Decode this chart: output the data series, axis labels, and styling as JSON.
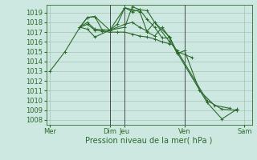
{
  "xlabel": "Pression niveau de la mer( hPa )",
  "bg_color": "#cde8e0",
  "grid_color": "#a0b8b0",
  "line_color": "#2d6a2d",
  "vline_color": "#4a4a4a",
  "ylim": [
    1007.5,
    1019.8
  ],
  "yticks": [
    1008,
    1009,
    1010,
    1011,
    1012,
    1013,
    1014,
    1015,
    1016,
    1017,
    1018,
    1019
  ],
  "xtick_labels": [
    "Mer",
    "Dim",
    "Jeu",
    "Ven",
    "Sam"
  ],
  "xtick_positions": [
    0,
    8,
    10,
    18,
    26
  ],
  "xlim": [
    -0.5,
    27
  ],
  "series": [
    [
      0,
      1013.0
    ],
    [
      2,
      1015.0
    ],
    [
      4,
      1017.5
    ],
    [
      5,
      1018.5
    ],
    [
      6,
      1018.6
    ],
    [
      7,
      1017.2
    ],
    [
      8,
      1017.2
    ],
    [
      9,
      1017.8
    ],
    [
      10,
      1019.5
    ],
    [
      11,
      1019.3
    ],
    [
      12,
      1019.1
    ],
    [
      13,
      1017.0
    ],
    [
      14,
      1016.6
    ],
    [
      15,
      1017.5
    ],
    [
      16,
      1016.4
    ],
    [
      17,
      1014.8
    ],
    [
      18,
      1015.1
    ],
    [
      20,
      1011.0
    ],
    [
      22,
      1009.5
    ],
    [
      24,
      1009.2
    ]
  ],
  "s2": [
    [
      4,
      1017.5
    ],
    [
      5,
      1018.5
    ],
    [
      6,
      1018.6
    ],
    [
      8,
      1017.2
    ],
    [
      10,
      1019.5
    ],
    [
      11,
      1019.1
    ],
    [
      12,
      1019.3
    ],
    [
      13,
      1018.3
    ],
    [
      14,
      1017.5
    ],
    [
      15,
      1016.4
    ],
    [
      16,
      1016.4
    ],
    [
      17,
      1015.0
    ],
    [
      19,
      1014.4
    ]
  ],
  "s3": [
    [
      4,
      1017.5
    ],
    [
      5,
      1017.8
    ],
    [
      6,
      1017.2
    ],
    [
      7,
      1017.1
    ],
    [
      8,
      1017.0
    ],
    [
      9,
      1017.0
    ],
    [
      10,
      1017.0
    ],
    [
      11,
      1016.8
    ],
    [
      12,
      1016.6
    ],
    [
      13,
      1016.5
    ],
    [
      14,
      1016.3
    ],
    [
      15,
      1016.0
    ],
    [
      16,
      1015.8
    ]
  ],
  "s4": [
    [
      4,
      1017.5
    ],
    [
      5,
      1017.3
    ],
    [
      6,
      1016.5
    ],
    [
      8,
      1017.2
    ],
    [
      10,
      1017.8
    ],
    [
      11,
      1018.0
    ],
    [
      12,
      1017.5
    ],
    [
      13,
      1017.1
    ],
    [
      14,
      1018.0
    ],
    [
      16,
      1016.0
    ],
    [
      17,
      1015.1
    ],
    [
      21,
      1010.0
    ],
    [
      23,
      1009.1
    ],
    [
      25,
      1009.0
    ]
  ],
  "s5": [
    [
      4,
      1017.5
    ],
    [
      5,
      1018.0
    ],
    [
      6,
      1017.3
    ],
    [
      8,
      1017.2
    ],
    [
      10,
      1017.5
    ],
    [
      11,
      1019.6
    ],
    [
      12,
      1019.3
    ],
    [
      13,
      1019.2
    ],
    [
      14,
      1018.0
    ],
    [
      16,
      1016.5
    ],
    [
      17,
      1014.9
    ],
    [
      21,
      1009.8
    ],
    [
      23,
      1008.1
    ],
    [
      25,
      1009.1
    ]
  ],
  "vline_positions": [
    8,
    10,
    18
  ],
  "marker": "+",
  "markersize": 3,
  "linewidth": 0.8,
  "fontsize_xlabel": 7,
  "fontsize_tick": 6
}
